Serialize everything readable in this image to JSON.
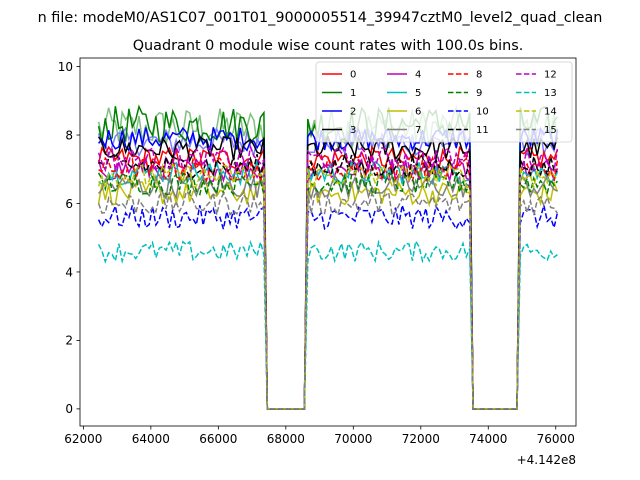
{
  "figure": {
    "suptitle": "n file: modeM0/AS1C07_001T01_9000005514_39947cztM0_level2_quad_clean"
  },
  "chart_data": {
    "type": "line",
    "title": "Quadrant 0 module wise count rates with 100.0s bins.",
    "xlabel": "",
    "ylabel": "",
    "x_offset_label": "+4.142e8",
    "xlim": [
      61900,
      76600
    ],
    "ylim": [
      -0.5,
      10.25
    ],
    "x_ticks": [
      62000,
      64000,
      66000,
      68000,
      70000,
      72000,
      74000,
      76000
    ],
    "y_ticks": [
      0,
      2,
      4,
      6,
      8,
      10
    ],
    "x_tick_labels": [
      "62000",
      "64000",
      "66000",
      "68000",
      "70000",
      "72000",
      "74000",
      "76000"
    ],
    "y_tick_labels": [
      "0",
      "2",
      "4",
      "6",
      "8",
      "10"
    ],
    "bin_seconds": 100,
    "x_start": 62450,
    "x_end": 76050,
    "gaps": [
      {
        "from": 67300,
        "to": 68700,
        "floor": 0
      },
      {
        "from": 73400,
        "to": 74950,
        "floor": 0
      }
    ],
    "series": [
      {
        "name": "0",
        "color": "#ff0000",
        "dash": "solid",
        "mean": 7.3,
        "noise": 0.35
      },
      {
        "name": "1",
        "color": "#008000",
        "dash": "solid",
        "mean": 8.3,
        "noise": 0.55
      },
      {
        "name": "2",
        "color": "#0000ff",
        "dash": "solid",
        "mean": 7.9,
        "noise": 0.35
      },
      {
        "name": "3",
        "color": "#000000",
        "dash": "solid",
        "mean": 7.6,
        "noise": 0.35
      },
      {
        "name": "4",
        "color": "#bf00bf",
        "dash": "solid",
        "mean": 7.0,
        "noise": 0.35
      },
      {
        "name": "5",
        "color": "#00bfbf",
        "dash": "solid",
        "mean": 6.9,
        "noise": 0.35
      },
      {
        "name": "6",
        "color": "#bfbf00",
        "dash": "solid",
        "mean": 6.3,
        "noise": 0.35
      },
      {
        "name": "7",
        "color": "#808080",
        "dash": "solid",
        "mean": 6.5,
        "noise": 0.35
      },
      {
        "name": "8",
        "color": "#ff0000",
        "dash": "dashed",
        "mean": 7.0,
        "noise": 0.35
      },
      {
        "name": "9",
        "color": "#008000",
        "dash": "dashed",
        "mean": 6.6,
        "noise": 0.35
      },
      {
        "name": "10",
        "color": "#0000ff",
        "dash": "dashed",
        "mean": 5.6,
        "noise": 0.35
      },
      {
        "name": "11",
        "color": "#000000",
        "dash": "dashed",
        "mean": 7.1,
        "noise": 0.35
      },
      {
        "name": "12",
        "color": "#bf00bf",
        "dash": "dashed",
        "mean": 7.3,
        "noise": 0.35
      },
      {
        "name": "13",
        "color": "#00bfbf",
        "dash": "dashed",
        "mean": 4.6,
        "noise": 0.3
      },
      {
        "name": "14",
        "color": "#bfbf00",
        "dash": "dashed",
        "mean": 6.8,
        "noise": 0.35
      },
      {
        "name": "15",
        "color": "#808080",
        "dash": "dashed",
        "mean": 6.0,
        "noise": 0.35
      }
    ],
    "extra_series": [
      {
        "color": "#7fbf7f",
        "dash": "solid",
        "mean": 8.2,
        "noise": 0.6
      },
      {
        "color": "#7f7fff",
        "dash": "solid",
        "mean": 7.8,
        "noise": 0.4
      }
    ],
    "legend": {
      "loc": "upper right",
      "ncol": 4
    },
    "grid": false
  }
}
